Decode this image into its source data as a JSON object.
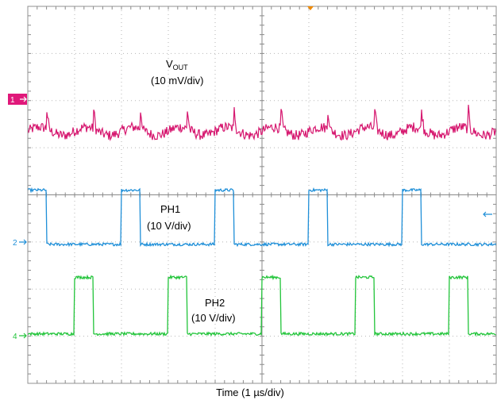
{
  "chart_data": {
    "type": "line",
    "xlabel": "Time (1 µs/div)",
    "x_divisions": 10,
    "y_divisions": 8,
    "grid": true,
    "series": [
      {
        "name": "VOUT",
        "label_main": "V",
        "label_sub": "OUT",
        "scale": "(10 mV/div)",
        "marker": "1",
        "color": "#d6176f",
        "baseline_div": 5.35,
        "ripple_div": 0.35,
        "spike_times_us": [
          0.4,
          2.4,
          4.4,
          6.4,
          8.4,
          1.4,
          3.4,
          5.4,
          7.4,
          9.4
        ]
      },
      {
        "name": "PH1",
        "label": "PH1",
        "scale": "(10 V/div)",
        "marker": "2",
        "color": "#1f8fd8",
        "low_div": 2.95,
        "high_div": 4.1,
        "period_us": 2.0,
        "high_intervals_us": [
          [
            0.0,
            0.4
          ],
          [
            2.0,
            2.4
          ],
          [
            4.0,
            4.4
          ],
          [
            6.0,
            6.4
          ],
          [
            8.0,
            8.4
          ]
        ]
      },
      {
        "name": "PH2",
        "label": "PH2",
        "scale": "(10 V/div)",
        "marker": "4",
        "color": "#22c43a",
        "low_div": 1.05,
        "high_div": 2.25,
        "period_us": 2.0,
        "high_intervals_us": [
          [
            1.0,
            1.4
          ],
          [
            3.0,
            3.4
          ],
          [
            5.0,
            5.4
          ],
          [
            7.0,
            7.4
          ],
          [
            9.0,
            9.4
          ]
        ]
      }
    ]
  }
}
